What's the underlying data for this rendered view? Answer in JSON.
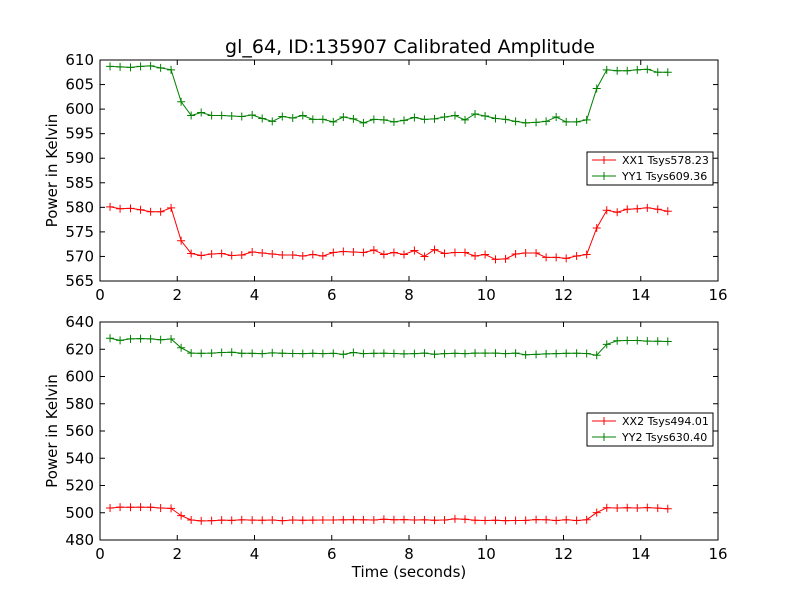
{
  "chart_data": {
    "title": "gl_64, ID:135907 Calibrated Amplitude",
    "panels": [
      {
        "type": "line",
        "xlabel": "",
        "ylabel": "Power in Kelvin",
        "xlim": [
          0,
          16
        ],
        "ylim": [
          565,
          610
        ],
        "xticks": [
          "0",
          "2",
          "4",
          "6",
          "8",
          "10",
          "12",
          "14",
          "16"
        ],
        "yticks": [
          "565",
          "570",
          "575",
          "580",
          "585",
          "590",
          "595",
          "600",
          "605",
          "610"
        ],
        "legend_position": "center-right",
        "x": [
          0.26,
          0.52,
          0.79,
          1.05,
          1.31,
          1.57,
          1.84,
          2.1,
          2.36,
          2.62,
          2.89,
          3.15,
          3.41,
          3.67,
          3.94,
          4.2,
          4.46,
          4.72,
          4.99,
          5.25,
          5.51,
          5.77,
          6.04,
          6.3,
          6.56,
          6.82,
          7.09,
          7.35,
          7.61,
          7.87,
          8.14,
          8.4,
          8.66,
          8.92,
          9.19,
          9.45,
          9.71,
          9.97,
          10.24,
          10.5,
          10.76,
          11.02,
          11.29,
          11.55,
          11.81,
          12.07,
          12.34,
          12.6,
          12.86,
          13.12,
          13.39,
          13.65,
          13.91,
          14.17,
          14.44,
          14.7
        ],
        "series": [
          {
            "name": "XX1 Tsys578.23",
            "color": "#ff0000",
            "values": [
              580.1,
              579.7,
              579.8,
              579.5,
              579.1,
              579.1,
              579.9,
              573.2,
              570.6,
              570.2,
              570.5,
              570.6,
              570.2,
              570.3,
              570.9,
              570.7,
              570.5,
              570.3,
              570.3,
              570.1,
              570.4,
              570.1,
              570.8,
              571.0,
              570.9,
              570.8,
              571.3,
              570.4,
              570.8,
              570.4,
              571.2,
              570.0,
              571.4,
              570.6,
              570.8,
              570.8,
              570.1,
              570.4,
              569.4,
              569.5,
              570.5,
              570.7,
              570.7,
              569.8,
              569.8,
              569.6,
              570.1,
              570.4,
              575.8,
              579.4,
              579.0,
              579.6,
              579.7,
              579.9,
              579.6,
              579.2
            ]
          },
          {
            "name": "YY1 Tsys609.36",
            "color": "#008000",
            "values": [
              608.7,
              608.6,
              608.5,
              608.7,
              608.8,
              608.4,
              608.0,
              601.5,
              598.7,
              599.3,
              598.7,
              598.7,
              598.6,
              598.5,
              598.8,
              598.1,
              597.5,
              598.5,
              598.2,
              598.7,
              597.9,
              597.9,
              597.4,
              598.4,
              598.0,
              597.2,
              597.9,
              597.8,
              597.4,
              597.7,
              598.3,
              597.9,
              598.0,
              598.4,
              598.7,
              597.8,
              599.0,
              598.6,
              598.1,
              597.9,
              597.5,
              597.2,
              597.3,
              597.5,
              598.4,
              597.4,
              597.4,
              597.8,
              604.2,
              608.0,
              607.8,
              607.8,
              608.0,
              608.1,
              607.5,
              607.5
            ]
          }
        ]
      },
      {
        "type": "line",
        "xlabel": "Time (seconds)",
        "ylabel": "Power in Kelvin",
        "xlim": [
          0,
          16
        ],
        "ylim": [
          480,
          640
        ],
        "xticks": [
          "0",
          "2",
          "4",
          "6",
          "8",
          "10",
          "12",
          "14",
          "16"
        ],
        "yticks": [
          "480",
          "500",
          "520",
          "540",
          "560",
          "580",
          "600",
          "620",
          "640"
        ],
        "legend_position": "center-right",
        "x": [
          0.26,
          0.52,
          0.79,
          1.05,
          1.31,
          1.57,
          1.84,
          2.1,
          2.36,
          2.62,
          2.89,
          3.15,
          3.41,
          3.67,
          3.94,
          4.2,
          4.46,
          4.72,
          4.99,
          5.25,
          5.51,
          5.77,
          6.04,
          6.3,
          6.56,
          6.82,
          7.09,
          7.35,
          7.61,
          7.87,
          8.14,
          8.4,
          8.66,
          8.92,
          9.19,
          9.45,
          9.71,
          9.97,
          10.24,
          10.5,
          10.76,
          11.02,
          11.29,
          11.55,
          11.81,
          12.07,
          12.34,
          12.6,
          12.86,
          13.12,
          13.39,
          13.65,
          13.91,
          14.17,
          14.44,
          14.7
        ],
        "series": [
          {
            "name": "XX2 Tsys494.01",
            "color": "#ff0000",
            "values": [
              503.5,
              504.1,
              504.0,
              504.1,
              504.0,
              503.5,
              503.2,
              497.9,
              494.7,
              494.0,
              494.2,
              494.6,
              494.4,
              494.8,
              494.6,
              494.5,
              494.7,
              494.2,
              494.7,
              494.5,
              494.6,
              494.7,
              494.7,
              494.8,
              494.9,
              494.8,
              494.7,
              495.2,
              494.9,
              495.0,
              494.7,
              494.8,
              494.5,
              494.7,
              495.5,
              495.2,
              494.5,
              494.3,
              494.5,
              494.2,
              494.3,
              494.4,
              495.0,
              494.9,
              494.3,
              494.9,
              494.3,
              494.9,
              500.1,
              503.7,
              503.5,
              503.7,
              503.5,
              503.8,
              503.4,
              502.9
            ]
          },
          {
            "name": "YY2 Tsys630.40",
            "color": "#008000",
            "values": [
              628.1,
              626.5,
              627.6,
              627.8,
              627.6,
              627.0,
              627.5,
              621.1,
              617.2,
              617.0,
              617.2,
              617.6,
              617.8,
              617.0,
              617.0,
              616.8,
              617.3,
              617.1,
              616.9,
              616.8,
              617.0,
              616.8,
              617.0,
              616.2,
              617.6,
              616.8,
              617.0,
              617.1,
              616.9,
              616.6,
              616.8,
              617.2,
              616.3,
              616.8,
              617.0,
              616.8,
              617.2,
              617.2,
              617.2,
              616.8,
              617.2,
              616.0,
              616.2,
              616.6,
              616.8,
              617.0,
              617.1,
              616.9,
              615.6,
              623.6,
              626.2,
              626.4,
              626.4,
              626.0,
              625.9,
              625.7
            ]
          }
        ]
      }
    ]
  }
}
